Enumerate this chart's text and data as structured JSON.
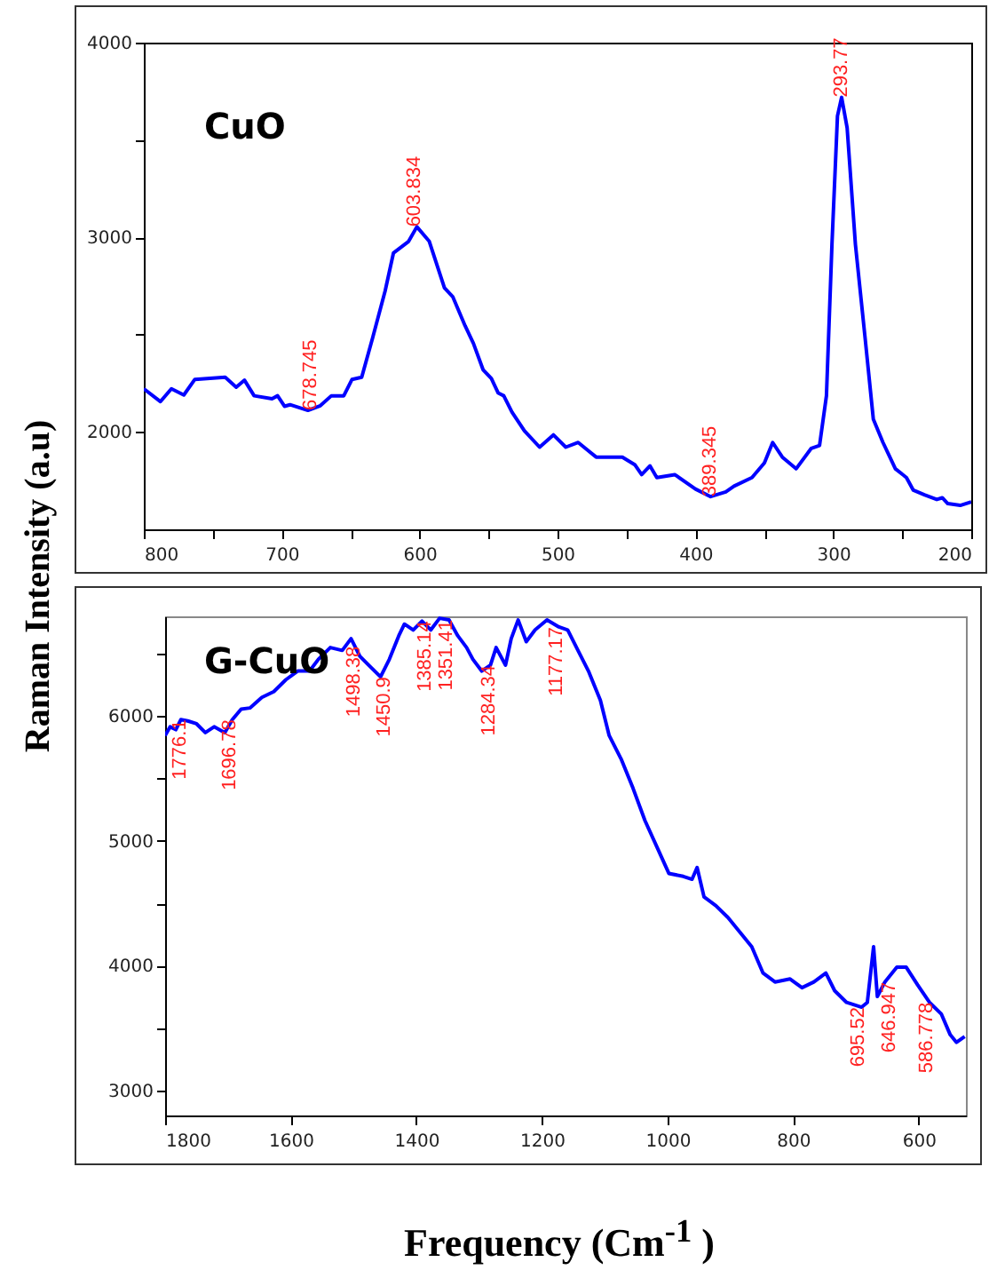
{
  "chart_data": [
    {
      "type": "line",
      "title": "CuO",
      "ylabel": "Raman Intensity (a.u)",
      "xlim": [
        800,
        200
      ],
      "xticks": [
        800,
        {
          "value": 750,
          "label": null
        },
        700,
        {
          "value": 650,
          "label": null
        },
        600,
        {
          "value": 550,
          "label": null
        },
        500,
        {
          "value": 450,
          "label": null
        },
        400,
        {
          "value": 350,
          "label": null
        },
        300,
        {
          "value": 250,
          "label": null
        },
        200
      ],
      "ylim": [
        1500,
        4000
      ],
      "yticks": [
        2000,
        {
          "value": 2500,
          "label": null
        },
        3000,
        {
          "value": 3500,
          "label": null
        },
        4000
      ],
      "grid": false,
      "series": [
        {
          "color": "#0000ff",
          "x": [
            800,
            788,
            780,
            771,
            763,
            741,
            733,
            727,
            720,
            707,
            703,
            698,
            694,
            681,
            672,
            664,
            655,
            649,
            642,
            634,
            625,
            619,
            608,
            602,
            593,
            582,
            576,
            567,
            561,
            554,
            548,
            543,
            539,
            533,
            524,
            513,
            503,
            494,
            485,
            472,
            453,
            444,
            439,
            433,
            428,
            415,
            400,
            389,
            378,
            372,
            359,
            350,
            344,
            337,
            327,
            316,
            310,
            305,
            301,
            297,
            294,
            290,
            284,
            277,
            271,
            264,
            255,
            247,
            242,
            234,
            225,
            221,
            217,
            208,
            200
          ],
          "values": [
            2222,
            2156,
            2222,
            2190,
            2270,
            2281,
            2230,
            2266,
            2186,
            2171,
            2186,
            2132,
            2140,
            2111,
            2135,
            2186,
            2186,
            2270,
            2281,
            2485,
            2725,
            2919,
            2979,
            3054,
            2979,
            2740,
            2695,
            2545,
            2455,
            2320,
            2275,
            2200,
            2186,
            2102,
            2006,
            1922,
            1985,
            1922,
            1946,
            1871,
            1871,
            1832,
            1781,
            1826,
            1766,
            1781,
            1707,
            1668,
            1692,
            1722,
            1766,
            1841,
            1946,
            1871,
            1811,
            1916,
            1931,
            2186,
            2964,
            3623,
            3719,
            3563,
            2964,
            2485,
            2066,
            1946,
            1811,
            1766,
            1701,
            1677,
            1653,
            1662,
            1632,
            1623,
            1641
          ]
        }
      ],
      "annotations": [
        {
          "text": "678.745",
          "x": 678.745,
          "y": 2111
        },
        {
          "text": "603.834",
          "x": 603.834,
          "y": 3054
        },
        {
          "text": "389.345",
          "x": 389.345,
          "y": 1668
        },
        {
          "text": "293.77",
          "x": 293.77,
          "y": 3719
        }
      ]
    },
    {
      "type": "line",
      "title": "G-CuO",
      "xlabel": "Frequency (Cm$^{-1}$ )",
      "xlim": [
        1800,
        525
      ],
      "xticks": [
        1800,
        1600,
        1400,
        1200,
        1000,
        800,
        600
      ],
      "ylim": [
        2800,
        6800
      ],
      "yticks": [
        3000,
        {
          "value": 3500,
          "label": null
        },
        4000,
        {
          "value": 4500,
          "label": null
        },
        5000,
        {
          "value": 5500,
          "label": null
        },
        6000,
        {
          "value": 6500,
          "label": null
        }
      ],
      "grid": false,
      "series": [
        {
          "color": "#0000ff",
          "x": [
            1800,
            1792,
            1783,
            1775,
            1764,
            1750,
            1736,
            1722,
            1705,
            1693,
            1679,
            1665,
            1646,
            1627,
            1608,
            1589,
            1570,
            1556,
            1537,
            1518,
            1504,
            1490,
            1476,
            1457,
            1443,
            1428,
            1419,
            1405,
            1391,
            1377,
            1363,
            1348,
            1334,
            1320,
            1310,
            1296,
            1282,
            1273,
            1258,
            1249,
            1238,
            1225,
            1211,
            1192,
            1173,
            1159,
            1145,
            1126,
            1107,
            1093,
            1074,
            1055,
            1036,
            1017,
            998,
            975,
            961,
            953,
            942,
            923,
            904,
            885,
            866,
            848,
            829,
            805,
            786,
            767,
            748,
            734,
            715,
            691,
            682,
            672,
            666,
            654,
            635,
            620,
            602,
            583,
            564,
            550,
            540,
            527
          ],
          "values": [
            5845,
            5915,
            5892,
            5972,
            5962,
            5939,
            5868,
            5915,
            5868,
            5972,
            6056,
            6066,
            6150,
            6197,
            6291,
            6362,
            6362,
            6456,
            6550,
            6527,
            6621,
            6480,
            6409,
            6315,
            6456,
            6644,
            6738,
            6691,
            6762,
            6691,
            6785,
            6771,
            6644,
            6550,
            6456,
            6362,
            6409,
            6550,
            6409,
            6621,
            6771,
            6597,
            6691,
            6771,
            6715,
            6691,
            6550,
            6362,
            6127,
            5845,
            5657,
            5422,
            5163,
            4952,
            4740,
            4716,
            4693,
            4787,
            4552,
            4481,
            4387,
            4270,
            4152,
            3941,
            3870,
            3894,
            3824,
            3870,
            3941,
            3800,
            3706,
            3668,
            3706,
            4152,
            3753,
            3870,
            3988,
            3988,
            3847,
            3706,
            3612,
            3447,
            3386,
            3433
          ]
        }
      ],
      "annotations": [
        {
          "text": "1776.1",
          "x": 1776.1,
          "y": 5972
        },
        {
          "text": "1696.78",
          "x": 1696.78,
          "y": 5972
        },
        {
          "text": "1498.38",
          "x": 1498.38,
          "y": 6560
        },
        {
          "text": "1450.9",
          "x": 1450.9,
          "y": 6315
        },
        {
          "text": "1385.14",
          "x": 1385.14,
          "y": 6762
        },
        {
          "text": "1351.41",
          "x": 1351.41,
          "y": 6771
        },
        {
          "text": "1284.34",
          "x": 1284.34,
          "y": 6409
        },
        {
          "text": "1177.17",
          "x": 1177.17,
          "y": 6715
        },
        {
          "text": "695.52",
          "x": 695.52,
          "y": 3668
        },
        {
          "text": "646.947",
          "x": 646.947,
          "y": 3870
        },
        {
          "text": "586.778",
          "x": 586.778,
          "y": 3706
        }
      ]
    }
  ]
}
